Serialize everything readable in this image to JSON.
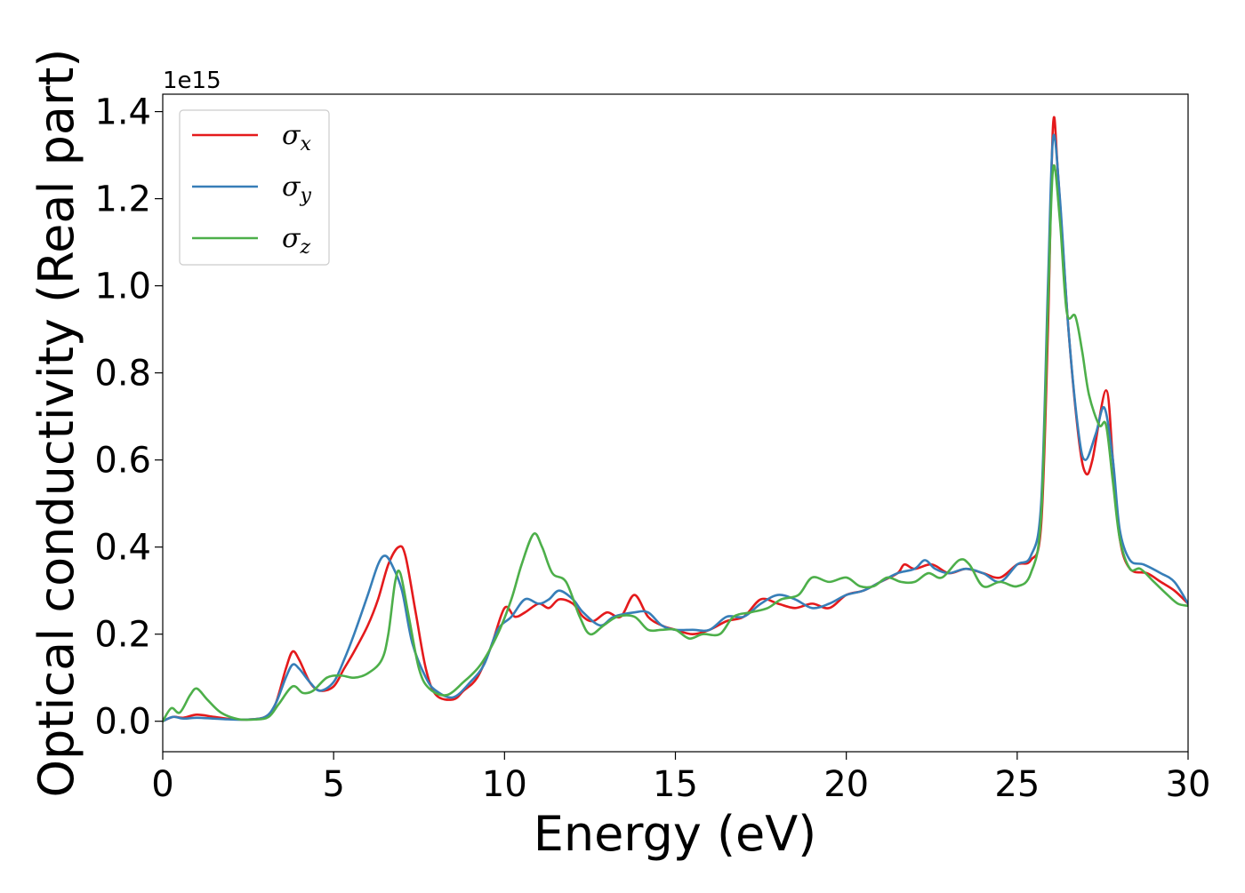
{
  "chart_data": {
    "type": "line",
    "title": "",
    "xlabel": "Energy (eV)",
    "ylabel": "Optical conductivity (Real part)",
    "y_offset_text": "1e15",
    "xlim": [
      0,
      30
    ],
    "ylim": [
      -0.07,
      1.44
    ],
    "x_ticks": [
      0,
      5,
      10,
      15,
      20,
      25,
      30
    ],
    "y_ticks": [
      0.0,
      0.2,
      0.4,
      0.6,
      0.8,
      1.0,
      1.2,
      1.4
    ],
    "x_tick_labels": [
      "0",
      "5",
      "10",
      "15",
      "20",
      "25",
      "30"
    ],
    "y_tick_labels": [
      "0.0",
      "0.2",
      "0.4",
      "0.6",
      "0.8",
      "1.0",
      "1.2",
      "1.4"
    ],
    "grid": false,
    "legend": {
      "position": "top-left",
      "entries": [
        {
          "symbol": "σ",
          "sub": "x",
          "color": "#e41a1c"
        },
        {
          "symbol": "σ",
          "sub": "y",
          "color": "#377eb8"
        },
        {
          "symbol": "σ",
          "sub": "z",
          "color": "#4daf4a"
        }
      ]
    },
    "series": [
      {
        "color": "#e41a1c",
        "points": [
          [
            0,
            0.0
          ],
          [
            0.3,
            0.01
          ],
          [
            0.6,
            0.008
          ],
          [
            1.0,
            0.015
          ],
          [
            1.5,
            0.01
          ],
          [
            2.0,
            0.005
          ],
          [
            2.5,
            0.004
          ],
          [
            3.0,
            0.01
          ],
          [
            3.3,
            0.04
          ],
          [
            3.6,
            0.12
          ],
          [
            3.8,
            0.16
          ],
          [
            4.0,
            0.14
          ],
          [
            4.3,
            0.09
          ],
          [
            4.6,
            0.07
          ],
          [
            5.0,
            0.08
          ],
          [
            5.3,
            0.12
          ],
          [
            5.6,
            0.16
          ],
          [
            6.0,
            0.22
          ],
          [
            6.3,
            0.28
          ],
          [
            6.6,
            0.36
          ],
          [
            6.9,
            0.4
          ],
          [
            7.1,
            0.38
          ],
          [
            7.4,
            0.25
          ],
          [
            7.7,
            0.12
          ],
          [
            8.0,
            0.06
          ],
          [
            8.5,
            0.05
          ],
          [
            8.8,
            0.07
          ],
          [
            9.2,
            0.1
          ],
          [
            9.6,
            0.17
          ],
          [
            10.0,
            0.26
          ],
          [
            10.3,
            0.24
          ],
          [
            10.6,
            0.25
          ],
          [
            11.0,
            0.27
          ],
          [
            11.3,
            0.26
          ],
          [
            11.6,
            0.28
          ],
          [
            12.0,
            0.27
          ],
          [
            12.3,
            0.24
          ],
          [
            12.6,
            0.23
          ],
          [
            13.0,
            0.25
          ],
          [
            13.4,
            0.24
          ],
          [
            13.8,
            0.29
          ],
          [
            14.2,
            0.24
          ],
          [
            14.6,
            0.22
          ],
          [
            15.0,
            0.21
          ],
          [
            15.5,
            0.2
          ],
          [
            16.0,
            0.21
          ],
          [
            16.5,
            0.23
          ],
          [
            17.0,
            0.24
          ],
          [
            17.5,
            0.28
          ],
          [
            18.0,
            0.27
          ],
          [
            18.5,
            0.26
          ],
          [
            19.0,
            0.27
          ],
          [
            19.5,
            0.26
          ],
          [
            20.0,
            0.29
          ],
          [
            20.5,
            0.3
          ],
          [
            21.0,
            0.32
          ],
          [
            21.5,
            0.34
          ],
          [
            21.7,
            0.36
          ],
          [
            22.0,
            0.35
          ],
          [
            22.5,
            0.36
          ],
          [
            23.0,
            0.34
          ],
          [
            23.5,
            0.35
          ],
          [
            24.0,
            0.34
          ],
          [
            24.5,
            0.33
          ],
          [
            25.0,
            0.36
          ],
          [
            25.4,
            0.37
          ],
          [
            25.7,
            0.45
          ],
          [
            25.9,
            0.9
          ],
          [
            26.05,
            1.37
          ],
          [
            26.2,
            1.25
          ],
          [
            26.5,
            0.9
          ],
          [
            26.8,
            0.65
          ],
          [
            27.0,
            0.57
          ],
          [
            27.2,
            0.6
          ],
          [
            27.6,
            0.76
          ],
          [
            27.8,
            0.6
          ],
          [
            28.0,
            0.42
          ],
          [
            28.3,
            0.35
          ],
          [
            28.8,
            0.34
          ],
          [
            29.2,
            0.32
          ],
          [
            29.6,
            0.3
          ],
          [
            30.0,
            0.27
          ]
        ]
      },
      {
        "color": "#377eb8",
        "points": [
          [
            0,
            0.0
          ],
          [
            0.3,
            0.01
          ],
          [
            0.6,
            0.006
          ],
          [
            1.0,
            0.008
          ],
          [
            1.5,
            0.006
          ],
          [
            2.0,
            0.004
          ],
          [
            2.5,
            0.004
          ],
          [
            3.0,
            0.01
          ],
          [
            3.3,
            0.04
          ],
          [
            3.6,
            0.1
          ],
          [
            3.8,
            0.13
          ],
          [
            4.0,
            0.12
          ],
          [
            4.3,
            0.09
          ],
          [
            4.6,
            0.07
          ],
          [
            5.0,
            0.09
          ],
          [
            5.3,
            0.14
          ],
          [
            5.6,
            0.2
          ],
          [
            6.0,
            0.29
          ],
          [
            6.3,
            0.36
          ],
          [
            6.5,
            0.38
          ],
          [
            6.7,
            0.36
          ],
          [
            7.0,
            0.3
          ],
          [
            7.3,
            0.18
          ],
          [
            7.7,
            0.1
          ],
          [
            8.0,
            0.07
          ],
          [
            8.5,
            0.055
          ],
          [
            9.0,
            0.09
          ],
          [
            9.4,
            0.13
          ],
          [
            9.8,
            0.21
          ],
          [
            10.2,
            0.24
          ],
          [
            10.6,
            0.28
          ],
          [
            11.0,
            0.27
          ],
          [
            11.3,
            0.28
          ],
          [
            11.6,
            0.3
          ],
          [
            12.0,
            0.28
          ],
          [
            12.3,
            0.25
          ],
          [
            12.8,
            0.22
          ],
          [
            13.2,
            0.24
          ],
          [
            13.8,
            0.25
          ],
          [
            14.2,
            0.25
          ],
          [
            14.6,
            0.22
          ],
          [
            15.0,
            0.21
          ],
          [
            15.5,
            0.21
          ],
          [
            16.0,
            0.21
          ],
          [
            16.5,
            0.24
          ],
          [
            17.0,
            0.24
          ],
          [
            17.5,
            0.27
          ],
          [
            18.0,
            0.29
          ],
          [
            18.5,
            0.28
          ],
          [
            19.0,
            0.26
          ],
          [
            19.5,
            0.27
          ],
          [
            20.0,
            0.29
          ],
          [
            20.5,
            0.3
          ],
          [
            21.0,
            0.32
          ],
          [
            21.5,
            0.34
          ],
          [
            22.0,
            0.35
          ],
          [
            22.3,
            0.37
          ],
          [
            22.6,
            0.35
          ],
          [
            23.0,
            0.34
          ],
          [
            23.5,
            0.35
          ],
          [
            24.0,
            0.34
          ],
          [
            24.5,
            0.32
          ],
          [
            25.0,
            0.36
          ],
          [
            25.4,
            0.38
          ],
          [
            25.7,
            0.5
          ],
          [
            25.9,
            1.0
          ],
          [
            26.05,
            1.34
          ],
          [
            26.25,
            1.2
          ],
          [
            26.5,
            0.9
          ],
          [
            26.8,
            0.66
          ],
          [
            27.0,
            0.6
          ],
          [
            27.3,
            0.66
          ],
          [
            27.55,
            0.72
          ],
          [
            27.8,
            0.6
          ],
          [
            28.0,
            0.44
          ],
          [
            28.3,
            0.37
          ],
          [
            28.7,
            0.36
          ],
          [
            29.2,
            0.34
          ],
          [
            29.6,
            0.32
          ],
          [
            30.0,
            0.27
          ]
        ]
      },
      {
        "color": "#4daf4a",
        "points": [
          [
            0,
            0.0
          ],
          [
            0.25,
            0.03
          ],
          [
            0.5,
            0.02
          ],
          [
            0.8,
            0.06
          ],
          [
            1.0,
            0.075
          ],
          [
            1.3,
            0.05
          ],
          [
            1.7,
            0.02
          ],
          [
            2.2,
            0.005
          ],
          [
            2.7,
            0.004
          ],
          [
            3.1,
            0.01
          ],
          [
            3.4,
            0.04
          ],
          [
            3.8,
            0.08
          ],
          [
            4.1,
            0.065
          ],
          [
            4.4,
            0.07
          ],
          [
            4.8,
            0.1
          ],
          [
            5.2,
            0.105
          ],
          [
            5.6,
            0.1
          ],
          [
            6.0,
            0.11
          ],
          [
            6.4,
            0.14
          ],
          [
            6.6,
            0.2
          ],
          [
            6.8,
            0.32
          ],
          [
            6.95,
            0.34
          ],
          [
            7.2,
            0.24
          ],
          [
            7.5,
            0.12
          ],
          [
            7.8,
            0.075
          ],
          [
            8.3,
            0.06
          ],
          [
            8.8,
            0.09
          ],
          [
            9.3,
            0.13
          ],
          [
            9.8,
            0.2
          ],
          [
            10.2,
            0.28
          ],
          [
            10.5,
            0.36
          ],
          [
            10.85,
            0.43
          ],
          [
            11.1,
            0.4
          ],
          [
            11.4,
            0.34
          ],
          [
            11.8,
            0.32
          ],
          [
            12.2,
            0.24
          ],
          [
            12.5,
            0.2
          ],
          [
            12.9,
            0.22
          ],
          [
            13.3,
            0.24
          ],
          [
            13.8,
            0.24
          ],
          [
            14.2,
            0.21
          ],
          [
            14.6,
            0.21
          ],
          [
            15.0,
            0.21
          ],
          [
            15.4,
            0.19
          ],
          [
            15.8,
            0.2
          ],
          [
            16.3,
            0.2
          ],
          [
            16.7,
            0.24
          ],
          [
            17.2,
            0.25
          ],
          [
            17.7,
            0.26
          ],
          [
            18.1,
            0.28
          ],
          [
            18.6,
            0.29
          ],
          [
            19.0,
            0.33
          ],
          [
            19.5,
            0.32
          ],
          [
            20.0,
            0.33
          ],
          [
            20.4,
            0.31
          ],
          [
            20.8,
            0.31
          ],
          [
            21.2,
            0.33
          ],
          [
            21.6,
            0.32
          ],
          [
            22.0,
            0.32
          ],
          [
            22.4,
            0.34
          ],
          [
            22.8,
            0.33
          ],
          [
            23.3,
            0.37
          ],
          [
            23.6,
            0.36
          ],
          [
            24.0,
            0.31
          ],
          [
            24.5,
            0.32
          ],
          [
            25.0,
            0.31
          ],
          [
            25.4,
            0.34
          ],
          [
            25.7,
            0.47
          ],
          [
            25.9,
            0.95
          ],
          [
            26.05,
            1.27
          ],
          [
            26.25,
            1.15
          ],
          [
            26.45,
            0.94
          ],
          [
            26.7,
            0.93
          ],
          [
            26.9,
            0.85
          ],
          [
            27.1,
            0.75
          ],
          [
            27.4,
            0.68
          ],
          [
            27.6,
            0.68
          ],
          [
            27.8,
            0.55
          ],
          [
            28.0,
            0.42
          ],
          [
            28.3,
            0.35
          ],
          [
            28.6,
            0.35
          ],
          [
            29.0,
            0.32
          ],
          [
            29.4,
            0.29
          ],
          [
            29.7,
            0.27
          ],
          [
            30.0,
            0.265
          ]
        ]
      }
    ]
  }
}
